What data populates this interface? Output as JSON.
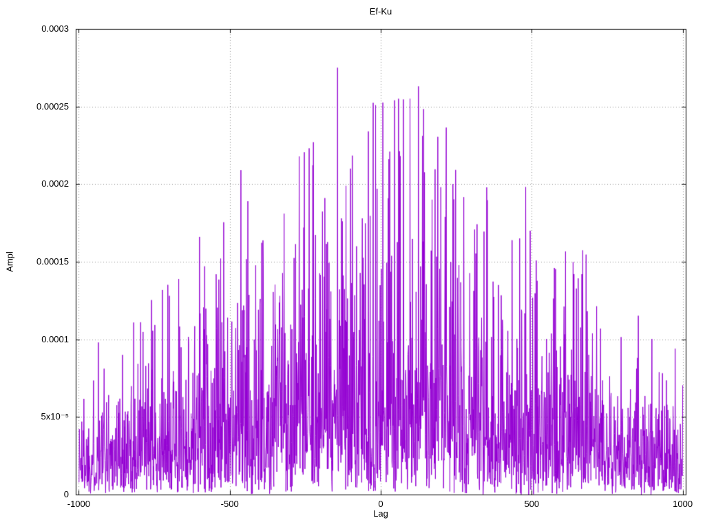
{
  "chart_data": {
    "type": "line",
    "title": "Ef-Ku",
    "xlabel": "Lag",
    "ylabel": "Ampl",
    "xlim": [
      -1010,
      1010
    ],
    "ylim": [
      0,
      0.0003
    ],
    "x_ticks": [
      {
        "value": -1000,
        "label": "-1000"
      },
      {
        "value": -500,
        "label": "-500"
      },
      {
        "value": 0,
        "label": "0"
      },
      {
        "value": 500,
        "label": "500"
      },
      {
        "value": 1000,
        "label": "1000"
      }
    ],
    "y_ticks": [
      {
        "value": 0,
        "label": "0"
      },
      {
        "value": 5e-05,
        "label": "5x10⁻⁵"
      },
      {
        "value": 0.0001,
        "label": "0.0001"
      },
      {
        "value": 0.00015,
        "label": "0.00015"
      },
      {
        "value": 0.0002,
        "label": "0.0002"
      },
      {
        "value": 0.00025,
        "label": "0.00025"
      },
      {
        "value": 0.0003,
        "label": "0.0003"
      }
    ],
    "grid": true,
    "grid_style": "dotted",
    "grid_color": "#8a8a8a",
    "border_color": "#000000",
    "background": "#ffffff",
    "line_color": "#9400d3",
    "legend": "none",
    "series": {
      "name": "Ef-Ku",
      "style": "noisy-impulse-lines",
      "x_range": [
        -1000,
        1000
      ],
      "points_count": 2001,
      "seed": 1337,
      "tail_shape": 0.8,
      "peak_multiplier_cap": 3.4,
      "envelope_mean": [
        [
          -1000,
          2.8e-05
        ],
        [
          -850,
          3.2e-05
        ],
        [
          -700,
          4e-05
        ],
        [
          -550,
          5e-05
        ],
        [
          -400,
          5.8e-05
        ],
        [
          -250,
          6.5e-05
        ],
        [
          -100,
          7.2e-05
        ],
        [
          0,
          7.5e-05
        ],
        [
          100,
          7.5e-05
        ],
        [
          250,
          6.8e-05
        ],
        [
          400,
          6.2e-05
        ],
        [
          550,
          5.5e-05
        ],
        [
          700,
          4.4e-05
        ],
        [
          850,
          3.4e-05
        ],
        [
          1000,
          2.8e-05
        ]
      ],
      "notable_peaks": [
        [
          -143,
          0.000275
        ],
        [
          125,
          0.000263
        ],
        [
          46,
          0.000254
        ],
        [
          -41,
          0.000234
        ],
        [
          138,
          0.000231
        ],
        [
          -223,
          0.000227
        ],
        [
          30,
          0.000221
        ],
        [
          65,
          0.000218
        ],
        [
          -100,
          0.00021
        ],
        [
          -463,
          0.000209
        ],
        [
          239,
          0.0002
        ],
        [
          -12,
          0.000197
        ],
        [
          -185,
          0.000191
        ],
        [
          170,
          0.00019
        ],
        [
          -440,
          0.000189
        ],
        [
          -320,
          0.000181
        ],
        [
          -255,
          0.000172
        ],
        [
          495,
          0.00017
        ],
        [
          -600,
          0.000166
        ],
        [
          460,
          0.000165
        ],
        [
          -530,
          0.000152
        ],
        [
          575,
          0.000146
        ],
        [
          666,
          0.000142
        ],
        [
          390,
          0.000135
        ],
        [
          -700,
          0.000128
        ],
        [
          -795,
          0.000111
        ],
        [
          -935,
          9.8e-05
        ],
        [
          975,
          9.4e-05
        ],
        [
          -855,
          9e-05
        ],
        [
          850,
          8.8e-05
        ],
        [
          940,
          5.7e-05
        ],
        [
          -990,
          4.7e-05
        ]
      ]
    }
  }
}
